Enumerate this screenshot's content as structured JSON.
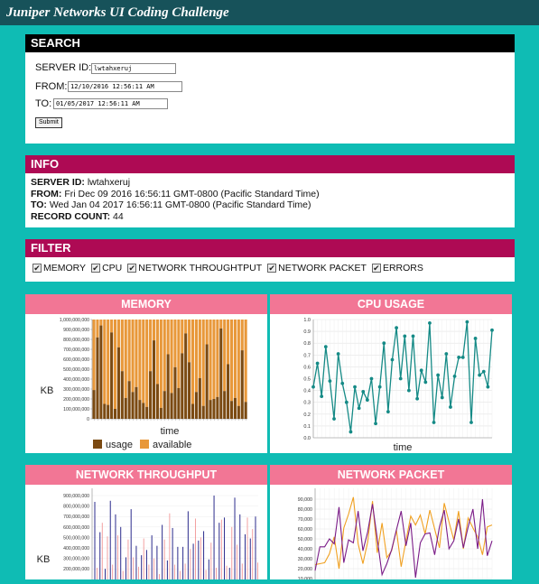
{
  "app": {
    "title": "Juniper Networks UI Coding Challenge"
  },
  "search": {
    "heading": "SEARCH",
    "server_label": "SERVER ID:",
    "server_value": "lwtahxeruj",
    "from_label": "FROM:",
    "from_value": "12/10/2016 12:56:11 AM",
    "to_label": "TO:",
    "to_value": "01/05/2017 12:56:11 AM",
    "submit_label": "Submit"
  },
  "info": {
    "heading": "INFO",
    "server_label": "SERVER ID:",
    "server_value": "lwtahxeruj",
    "from_label": "FROM:",
    "from_value": "Fri Dec 09 2016 16:56:11 GMT-0800 (Pacific Standard Time)",
    "to_label": "TO:",
    "to_value": "Wed Jan 04 2017 16:56:11 GMT-0800 (Pacific Standard Time)",
    "count_label": "RECORD COUNT:",
    "count_value": "44"
  },
  "filter": {
    "heading": "FILTER",
    "options": [
      {
        "label": "MEMORY",
        "checked": true
      },
      {
        "label": "CPU",
        "checked": true
      },
      {
        "label": "NETWORK THROUGHTPUT",
        "checked": true
      },
      {
        "label": "NETWORK PACKET",
        "checked": true
      },
      {
        "label": "ERRORS",
        "checked": true
      }
    ]
  },
  "colors": {
    "usage": "#7b4a12",
    "available": "#e8983a",
    "cpu": "#158a86",
    "throughput_a": "#2b2b8c",
    "throughput_b": "#f08a8a",
    "packet_a": "#7a1b87",
    "packet_b": "#f0a020"
  },
  "chart_data": [
    {
      "type": "bar",
      "title": "MEMORY",
      "ylabel": "KB",
      "xlabel": "time",
      "ylim": [
        0,
        1000000000
      ],
      "yticks": [
        "0",
        "100,000,000",
        "200,000,000",
        "300,000,000",
        "400,000,000",
        "500,000,000",
        "600,000,000",
        "700,000,000",
        "800,000,000",
        "900,000,000",
        "1,000,000,000"
      ],
      "stacked": true,
      "series": [
        {
          "name": "usage",
          "values": [
            290,
            820,
            940,
            150,
            140,
            870,
            100,
            720,
            480,
            210,
            380,
            270,
            320,
            190,
            160,
            120,
            480,
            790,
            350,
            110,
            280,
            650,
            260,
            520,
            310,
            660,
            860,
            570,
            150,
            270,
            410,
            130,
            750,
            190,
            200,
            220,
            910,
            280,
            550,
            180,
            210,
            130,
            690,
            170
          ]
        },
        {
          "name": "available",
          "values": [
            710,
            180,
            60,
            850,
            860,
            130,
            900,
            280,
            520,
            790,
            620,
            730,
            680,
            810,
            840,
            880,
            520,
            210,
            650,
            890,
            720,
            350,
            740,
            480,
            690,
            340,
            140,
            430,
            850,
            730,
            590,
            870,
            250,
            810,
            800,
            780,
            90,
            720,
            450,
            820,
            790,
            870,
            310,
            830
          ]
        }
      ],
      "value_unit": "millions",
      "legend": "bottom"
    },
    {
      "type": "line",
      "title": "CPU USAGE",
      "xlabel": "time",
      "ylim": [
        0,
        1.0
      ],
      "yticks": [
        "0.0",
        "0.1",
        "0.2",
        "0.3",
        "0.4",
        "0.5",
        "0.6",
        "0.7",
        "0.8",
        "0.9",
        "1.0"
      ],
      "series": [
        {
          "values": [
            0.43,
            0.63,
            0.35,
            0.77,
            0.48,
            0.16,
            0.71,
            0.46,
            0.3,
            0.05,
            0.43,
            0.25,
            0.39,
            0.32,
            0.5,
            0.12,
            0.43,
            0.8,
            0.22,
            0.66,
            0.93,
            0.5,
            0.86,
            0.4,
            0.86,
            0.33,
            0.57,
            0.47,
            0.97,
            0.13,
            0.53,
            0.34,
            0.71,
            0.26,
            0.52,
            0.68,
            0.68,
            0.98,
            0.13,
            0.84,
            0.53,
            0.56,
            0.43,
            0.91
          ]
        }
      ],
      "grid": true
    },
    {
      "type": "bar",
      "title": "NETWORK THROUGHPUT",
      "ylabel": "KB",
      "yticks": [
        "900,000,000",
        "800,000,000",
        "700,000,000",
        "600,000,000",
        "500,000,000",
        "400,000,000",
        "300,000,000",
        "200,000,000"
      ],
      "ylim": [
        0,
        1000000000
      ],
      "value_unit": "millions",
      "series": [
        {
          "values": [
            840,
            550,
            200,
            850,
            720,
            600,
            310,
            770,
            420,
            330,
            380,
            520,
            420,
            620,
            280,
            590,
            410,
            410,
            750,
            440,
            470,
            560,
            290,
            900,
            640,
            690,
            210,
            880,
            720,
            530,
            490,
            700
          ]
        },
        {
          "values": [
            210,
            640,
            510,
            240,
            520,
            180,
            480,
            310,
            220,
            490,
            240,
            300,
            150,
            480,
            730,
            240,
            180,
            250,
            390,
            680,
            500,
            190,
            450,
            210,
            670,
            230,
            600,
            430,
            250,
            690,
            580,
            260
          ]
        }
      ]
    },
    {
      "type": "line",
      "title": "NETWORK PACKET",
      "yticks": [
        "90,000",
        "80,000",
        "70,000",
        "60,000",
        "50,000",
        "40,000",
        "30,000",
        "20,000",
        "10,000"
      ],
      "ylim": [
        0,
        100000
      ],
      "series": [
        {
          "values": [
            18000,
            42000,
            42000,
            50000,
            45000,
            82000,
            26000,
            49000,
            46000,
            78000,
            38000,
            57000,
            85000,
            50000,
            14000,
            25000,
            39000,
            59000,
            78000,
            43000,
            66000,
            11000,
            46000,
            55000,
            56000,
            34000,
            62000,
            79000,
            40000,
            48000,
            70000,
            41000,
            62000,
            80000,
            40000,
            90000,
            33000,
            48000
          ]
        },
        {
          "values": [
            24000,
            25000,
            26000,
            35000,
            52000,
            20000,
            61000,
            75000,
            92000,
            45000,
            25000,
            47000,
            88000,
            36000,
            66000,
            31000,
            38000,
            59000,
            22000,
            48000,
            73000,
            64000,
            74000,
            55000,
            79000,
            60000,
            41000,
            86000,
            67000,
            49000,
            78000,
            40000,
            71000,
            61000,
            52000,
            34000,
            62000,
            64000
          ]
        }
      ]
    }
  ]
}
